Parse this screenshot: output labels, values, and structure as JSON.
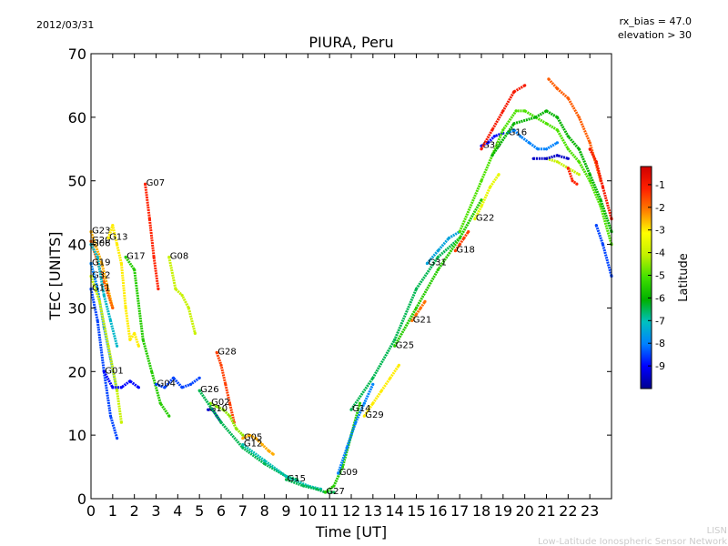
{
  "header": {
    "date": "2012/03/31",
    "title": "PIURA, Peru",
    "rx_bias": "rx_bias = 47.0",
    "elevation": "elevation > 30"
  },
  "footer": {
    "credit_short": "LISN",
    "credit_long": "Low-Latitude Ionospheric Sensor Network"
  },
  "chart_data": {
    "type": "scatter",
    "title": "PIURA, Peru",
    "xlabel": "Time [UT]",
    "ylabel": "TEC [UNITS]",
    "xlim": [
      0,
      24
    ],
    "ylim": [
      0,
      70
    ],
    "x_ticks": [
      "0",
      "1",
      "2",
      "3",
      "4",
      "5",
      "6",
      "7",
      "8",
      "9",
      "10",
      "11",
      "12",
      "13",
      "14",
      "15",
      "16",
      "17",
      "18",
      "19",
      "20",
      "21",
      "22",
      "23"
    ],
    "y_ticks": [
      "0",
      "10",
      "20",
      "30",
      "40",
      "50",
      "60",
      "70"
    ],
    "grid": false,
    "colorbar": {
      "label": "Latitude",
      "range": [
        -10,
        -0.2
      ],
      "ticks": [
        "-1",
        "-2",
        "-3",
        "-4",
        "-5",
        "-6",
        "-7",
        "-8",
        "-9"
      ],
      "colormap": [
        "#00008f",
        "#0000ff",
        "#0080ff",
        "#00c0c0",
        "#00b000",
        "#40e000",
        "#c0f000",
        "#ffff00",
        "#ff8000",
        "#ff2000",
        "#d00000"
      ]
    },
    "series": [
      {
        "name": "G23",
        "lat": -2.5,
        "x": [
          0.0,
          0.5,
          1.0
        ],
        "y": [
          42,
          37,
          30
        ]
      },
      {
        "name": "G20",
        "lat": -1.8,
        "x": [
          0.0,
          0.6,
          1.0
        ],
        "y": [
          40.5,
          34,
          30
        ]
      },
      {
        "name": "G06",
        "lat": -7.2,
        "x": [
          0.0,
          0.3,
          0.6,
          0.9,
          1.2
        ],
        "y": [
          40,
          38,
          32,
          28,
          24
        ]
      },
      {
        "name": "G13",
        "lat": -3.0,
        "x": [
          0.8,
          1.0,
          1.2,
          1.4,
          1.6,
          1.8,
          2.0,
          2.2
        ],
        "y": [
          41,
          43,
          40,
          37,
          30,
          25,
          26,
          24
        ]
      },
      {
        "name": "G19",
        "lat": -8.0,
        "x": [
          0.0,
          0.3,
          0.6,
          0.9,
          1.2
        ],
        "y": [
          37,
          33,
          27,
          22,
          17
        ]
      },
      {
        "name": "G32",
        "lat": -4.0,
        "x": [
          0.0,
          0.4,
          0.8,
          1.2,
          1.4
        ],
        "y": [
          35,
          31,
          24,
          17,
          12
        ]
      },
      {
        "name": "G11",
        "lat": -8.5,
        "x": [
          0.0,
          0.3,
          0.6,
          0.9,
          1.2
        ],
        "y": [
          33,
          28,
          20,
          13,
          9.5
        ]
      },
      {
        "name": "G01",
        "lat": -9.0,
        "x": [
          0.6,
          1.0,
          1.4,
          1.8,
          2.2
        ],
        "y": [
          20,
          17.5,
          17.5,
          18.5,
          17.5
        ]
      },
      {
        "name": "G07",
        "lat": -1.2,
        "x": [
          2.5,
          2.7,
          2.9,
          3.1
        ],
        "y": [
          49.5,
          44,
          38,
          33
        ]
      },
      {
        "name": "G17",
        "lat": -5.5,
        "x": [
          1.6,
          2.0,
          2.4,
          2.8,
          3.2,
          3.6
        ],
        "y": [
          38,
          36,
          25,
          20,
          15,
          13
        ]
      },
      {
        "name": "G08",
        "lat": -4.0,
        "x": [
          3.6,
          3.9,
          4.2,
          4.5,
          4.8
        ],
        "y": [
          38,
          33,
          32,
          30,
          26
        ]
      },
      {
        "name": "G04",
        "lat": -8.5,
        "x": [
          3.0,
          3.4,
          3.8,
          4.2,
          4.6,
          5.0
        ],
        "y": [
          18,
          17.5,
          19,
          17.5,
          18,
          19
        ]
      },
      {
        "name": "G28",
        "lat": -1.5,
        "x": [
          5.8,
          6.0,
          6.2,
          6.4,
          6.6
        ],
        "y": [
          23,
          21,
          18,
          15,
          12
        ]
      },
      {
        "name": "G02",
        "lat": -4.5,
        "x": [
          5.5,
          5.8,
          6.1,
          6.4,
          6.7,
          7.0
        ],
        "y": [
          15,
          14.5,
          14,
          13,
          11,
          10
        ]
      },
      {
        "name": "G10",
        "lat": -9.5,
        "x": [
          5.4,
          5.6,
          5.8,
          6.0
        ],
        "y": [
          14,
          14,
          13,
          12
        ]
      },
      {
        "name": "G05",
        "lat": -2.5,
        "x": [
          7.0,
          7.3,
          7.6,
          7.9,
          8.2,
          8.4
        ],
        "y": [
          9.5,
          10,
          9.5,
          8.5,
          7.5,
          7
        ]
      },
      {
        "name": "G26",
        "lat": -6.5,
        "x": [
          5.0,
          6.0,
          7.0,
          8.0,
          9.0,
          9.5
        ],
        "y": [
          17,
          12,
          8,
          5.5,
          3.5,
          3
        ]
      },
      {
        "name": "G12",
        "lat": -7.0,
        "x": [
          7.0,
          8.0,
          9.0,
          10.0,
          10.6
        ],
        "y": [
          8.5,
          6,
          3.5,
          2,
          1.5
        ]
      },
      {
        "name": "G15",
        "lat": -6.5,
        "x": [
          9.0,
          9.8,
          10.4,
          10.8,
          11.2
        ],
        "y": [
          3,
          2,
          1.5,
          1,
          1
        ]
      },
      {
        "name": "G27",
        "lat": -5.5,
        "x": [
          10.8,
          11.2,
          11.6,
          12.0,
          12.4
        ],
        "y": [
          1,
          2,
          5,
          10,
          15
        ]
      },
      {
        "name": "G09",
        "lat": -8.0,
        "x": [
          11.4,
          11.8,
          12.2,
          12.6,
          13.0
        ],
        "y": [
          4,
          8,
          12,
          15,
          18
        ]
      },
      {
        "name": "G29",
        "lat": -3.0,
        "x": [
          12.6,
          13.0,
          13.4,
          13.8,
          14.2
        ],
        "y": [
          13,
          15,
          17,
          19,
          21
        ]
      },
      {
        "name": "G21",
        "lat": -2.0,
        "x": [
          14.8,
          15.0,
          15.2,
          15.4
        ],
        "y": [
          28,
          29,
          30,
          31
        ]
      },
      {
        "name": "G14",
        "lat": -6.5,
        "x": [
          12.0,
          13.0,
          14.0,
          15.0,
          16.0,
          17.0
        ],
        "y": [
          14,
          19,
          25,
          33,
          38,
          41
        ]
      },
      {
        "name": "G25",
        "lat": -5.5,
        "x": [
          14.0,
          15.0,
          16.0,
          17.0,
          18.0
        ],
        "y": [
          24,
          30,
          36,
          41,
          47
        ]
      },
      {
        "name": "G31",
        "lat": -7.5,
        "x": [
          15.5,
          16.0,
          16.5,
          17.0
        ],
        "y": [
          37,
          39,
          41,
          42
        ]
      },
      {
        "name": "G18",
        "lat": -1.5,
        "x": [
          16.8,
          17.0,
          17.2,
          17.4
        ],
        "y": [
          39,
          40,
          41,
          42
        ]
      },
      {
        "name": "G22",
        "lat": -3.5,
        "x": [
          17.7,
          18.0,
          18.4,
          18.8
        ],
        "y": [
          44,
          46,
          49,
          51
        ]
      },
      {
        "name": "G30",
        "lat": -9.0,
        "x": [
          18.0,
          18.3,
          18.6,
          19.0
        ],
        "y": [
          55.5,
          56,
          57,
          57.5
        ]
      },
      {
        "name": "G16",
        "lat": -8.0,
        "x": [
          19.2,
          19.5,
          19.8,
          20.2,
          20.6,
          21.0,
          21.5
        ],
        "y": [
          57.5,
          58,
          57,
          56,
          55,
          55,
          56
        ]
      },
      {
        "name": "",
        "lat": -1.0,
        "x": [
          18.0,
          18.5,
          19.0,
          19.5,
          20.0
        ],
        "y": [
          55,
          58,
          61,
          64,
          65
        ]
      },
      {
        "name": "",
        "lat": -5.0,
        "x": [
          17.0,
          18.0,
          19.0,
          19.6,
          20.0,
          20.5,
          21.0,
          21.5,
          22.0,
          22.5,
          23.0,
          23.5,
          24.0
        ],
        "y": [
          42,
          50,
          58,
          61,
          61,
          60,
          59,
          58,
          55,
          53,
          50,
          46,
          40
        ]
      },
      {
        "name": "",
        "lat": -6.0,
        "x": [
          18.5,
          19.5,
          20.5,
          21.0,
          21.5,
          22.0,
          22.5,
          23.0,
          23.5,
          24.0
        ],
        "y": [
          54,
          59,
          60,
          61,
          60,
          57,
          55,
          51,
          47,
          42
        ]
      },
      {
        "name": "",
        "lat": -1.8,
        "x": [
          21.1,
          21.5,
          22.0,
          22.5,
          23.0,
          23.5
        ],
        "y": [
          66,
          64.5,
          63,
          60,
          56,
          50
        ]
      },
      {
        "name": "",
        "lat": -4.0,
        "x": [
          21.0,
          21.5,
          22.0,
          22.5
        ],
        "y": [
          53.5,
          53,
          52,
          51
        ]
      },
      {
        "name": "",
        "lat": -9.5,
        "x": [
          20.4,
          21.0,
          21.5,
          22.0
        ],
        "y": [
          53.5,
          53.5,
          54,
          53.5
        ]
      },
      {
        "name": "",
        "lat": -1.0,
        "x": [
          23.0,
          23.3,
          23.6,
          24.0
        ],
        "y": [
          55,
          53,
          49,
          44
        ]
      },
      {
        "name": "",
        "lat": -8.5,
        "x": [
          23.3,
          23.6,
          24.0
        ],
        "y": [
          43,
          40,
          35
        ]
      },
      {
        "name": "",
        "lat": -1.2,
        "x": [
          22.0,
          22.2,
          22.4
        ],
        "y": [
          52,
          50,
          49.5
        ]
      }
    ]
  }
}
